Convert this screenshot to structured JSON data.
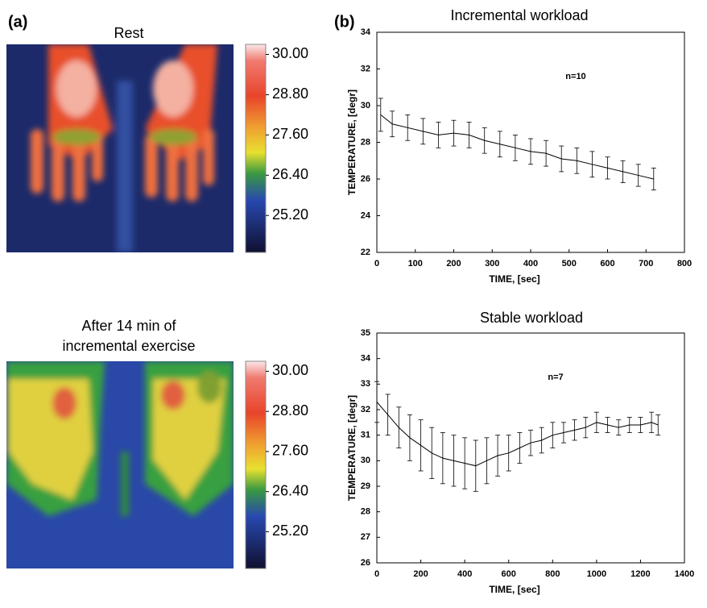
{
  "panel_a": {
    "label": "(a)",
    "images": [
      {
        "title_lines": [
          "Rest"
        ]
      },
      {
        "title_lines": [
          "After 14 min of",
          "incremental exercise"
        ]
      }
    ],
    "colorbar": {
      "lim": [
        24.1,
        30.3
      ],
      "ticks": [
        {
          "value": 30,
          "label": "30.00"
        },
        {
          "value": 28.8,
          "label": "28.80"
        },
        {
          "value": 27.6,
          "label": "27.60"
        },
        {
          "value": 26.4,
          "label": "26.40"
        },
        {
          "value": 25.2,
          "label": "25.20"
        }
      ]
    }
  },
  "panel_b_label": "(b)",
  "chart_data": [
    {
      "type": "line",
      "title": "Incremental workload",
      "x_label": "TIME, [sec]",
      "y_label": "TEMPERATURE, [degr]",
      "annotation": "n=10",
      "xlim": [
        0,
        800
      ],
      "xticks": [
        0,
        100,
        200,
        300,
        400,
        500,
        600,
        700,
        800
      ],
      "ylim": [
        22,
        34
      ],
      "yticks": [
        22,
        24,
        26,
        28,
        30,
        32,
        34
      ],
      "x": [
        10,
        40,
        80,
        120,
        160,
        200,
        240,
        280,
        320,
        360,
        400,
        440,
        480,
        520,
        560,
        600,
        640,
        680,
        720
      ],
      "series": [
        {
          "color": "#000000",
          "values": [
            29.5,
            29.0,
            28.8,
            28.6,
            28.4,
            28.5,
            28.4,
            28.1,
            27.9,
            27.7,
            27.5,
            27.4,
            27.1,
            27.0,
            26.8,
            26.6,
            26.4,
            26.2,
            26.0
          ],
          "errors": [
            0.9,
            0.7,
            0.7,
            0.7,
            0.7,
            0.7,
            0.7,
            0.7,
            0.7,
            0.7,
            0.7,
            0.7,
            0.7,
            0.7,
            0.7,
            0.6,
            0.6,
            0.6,
            0.6
          ]
        }
      ]
    },
    {
      "type": "line",
      "title": "Stable workload",
      "x_label": "TIME, [sec]",
      "y_label": "TEMPERATURE,  [degr]",
      "annotation": "n=7",
      "xlim": [
        0,
        1400
      ],
      "xticks": [
        0,
        200,
        400,
        600,
        800,
        1000,
        1200,
        1400
      ],
      "ylim": [
        26,
        35
      ],
      "yticks": [
        26,
        27,
        28,
        29,
        30,
        31,
        32,
        33,
        34,
        35
      ],
      "x": [
        0,
        50,
        100,
        150,
        200,
        250,
        300,
        350,
        400,
        450,
        500,
        550,
        600,
        650,
        700,
        750,
        800,
        850,
        900,
        950,
        1000,
        1050,
        1100,
        1150,
        1200,
        1250,
        1280
      ],
      "series": [
        {
          "color": "#000000",
          "values": [
            32.3,
            31.8,
            31.3,
            30.9,
            30.6,
            30.3,
            30.1,
            30.0,
            29.9,
            29.8,
            30.0,
            30.2,
            30.3,
            30.5,
            30.7,
            30.8,
            31.0,
            31.1,
            31.2,
            31.3,
            31.5,
            31.4,
            31.3,
            31.4,
            31.4,
            31.5,
            31.4
          ],
          "errors": [
            0.8,
            0.8,
            0.8,
            0.9,
            1.0,
            1.0,
            1.0,
            1.0,
            1.0,
            1.0,
            0.9,
            0.8,
            0.7,
            0.6,
            0.5,
            0.5,
            0.5,
            0.4,
            0.4,
            0.4,
            0.4,
            0.3,
            0.3,
            0.3,
            0.3,
            0.4,
            0.4
          ]
        }
      ]
    }
  ]
}
